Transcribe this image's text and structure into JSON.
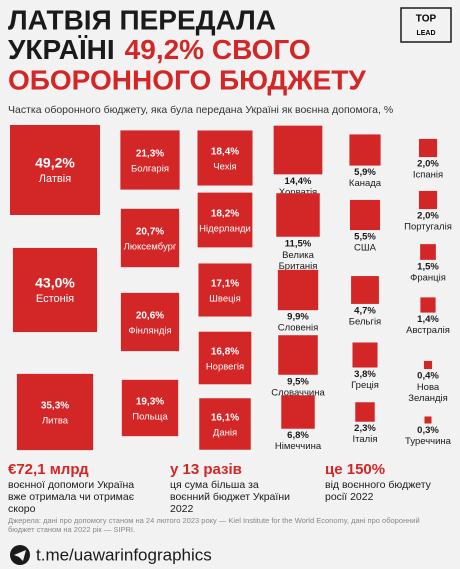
{
  "logo": {
    "line1": "TOP",
    "line2": "LEAD"
  },
  "chart_data": {
    "type": "square",
    "color": "#d32626",
    "title": {
      "line1": "ЛАТВІЯ ПЕРЕДАЛА",
      "line2a": "УКРАЇНІ",
      "line2b": "49,2% СВОГО",
      "line3": "ОБОРОННОГО БЮДЖЕТУ"
    },
    "subtitle": "Частка оборонного бюджету, яка була передана Україні як воєнна допомога, %",
    "categories": [
      "Латвія",
      "Естонія",
      "Литва",
      "Болгарія",
      "Люксембург",
      "Фінляндія",
      "Польща",
      "Чехія",
      "Нідерланди",
      "Швеція",
      "Норвегія",
      "Данія",
      "Хорватія",
      "Велика Британія",
      "Словенія",
      "Словаччина",
      "Німеччина",
      "Канада",
      "США",
      "Бельгія",
      "Греція",
      "Італія",
      "Іспанія",
      "Португалія",
      "Франція",
      "Австралія",
      "Нова Зеландія",
      "Туреччина"
    ],
    "values": [
      49.2,
      43.0,
      35.3,
      21.3,
      20.7,
      20.6,
      19.3,
      18.4,
      18.2,
      17.1,
      16.8,
      16.1,
      14.4,
      11.5,
      9.9,
      9.5,
      6.8,
      5.9,
      5.5,
      4.7,
      3.8,
      2.3,
      2.0,
      2.0,
      1.5,
      1.4,
      0.4,
      0.3
    ],
    "value_labels": [
      "49,2%",
      "43,0%",
      "35,3%",
      "21,3%",
      "20,7%",
      "20,6%",
      "19,3%",
      "18,4%",
      "18,2%",
      "17,1%",
      "16,8%",
      "16,1%",
      "14,4%",
      "11,5%",
      "9,9%",
      "9,5%",
      "6,8%",
      "5,9%",
      "5,5%",
      "4,7%",
      "3,8%",
      "2,3%",
      "2,0%",
      "2,0%",
      "1,5%",
      "1,4%",
      "0,4%",
      "0,3%"
    ]
  },
  "stats": [
    {
      "value": "€72,1 млрд",
      "text": "воєнної допомоги Україна вже отримала чи отримає скоро"
    },
    {
      "value": "у 13 разів",
      "text": "ця сума більша за воєнний бюджет України 2022"
    },
    {
      "value": "це 150%",
      "text": "від воєнного бюджету росії 2022"
    }
  ],
  "source": "Джерела: дані про допомогу станом на 24 лютого 2023 року — Kiel Institute for the World Economy, дані про оборонний бюджет станом на 2022 рік — SIPRI.",
  "link": "t.me/uawarinfographics"
}
